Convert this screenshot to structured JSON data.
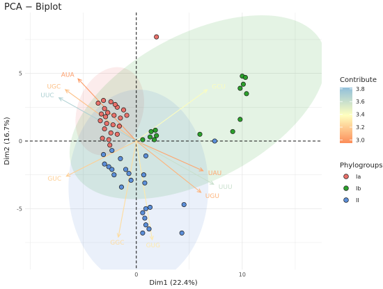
{
  "chart_data": {
    "type": "scatter",
    "subtype": "pca-biplot",
    "title": "PCA − Biplot",
    "xlabel": "Dim1 (22.4%)",
    "ylabel": "Dim2 (16.7%)",
    "xlim": [
      -10.5,
      17.5
    ],
    "ylim": [
      -9.5,
      9.5
    ],
    "xticks": [
      0,
      10
    ],
    "yticks": [
      -5,
      0,
      5
    ],
    "grid": true,
    "reference_lines": {
      "x": 0,
      "y": 0,
      "style": "dashed"
    },
    "groups": [
      {
        "name": "Ia",
        "color": "#e8706a",
        "ellipse": {
          "cx": -2.5,
          "cy": 2.2,
          "rx": 4.3,
          "ry": 2.4,
          "angle": 70
        },
        "points": [
          [
            -3.6,
            2.8
          ],
          [
            -3.0,
            2.4
          ],
          [
            -2.4,
            2.9
          ],
          [
            -1.8,
            2.5
          ],
          [
            -1.2,
            2.3
          ],
          [
            -3.3,
            2.0
          ],
          [
            -2.7,
            2.1
          ],
          [
            -2.1,
            1.9
          ],
          [
            -1.5,
            1.7
          ],
          [
            -0.9,
            1.9
          ],
          [
            -3.4,
            1.5
          ],
          [
            -2.8,
            1.3
          ],
          [
            -2.2,
            1.2
          ],
          [
            -1.6,
            1.1
          ],
          [
            -3.0,
            0.9
          ],
          [
            -2.4,
            0.6
          ],
          [
            -1.8,
            0.5
          ],
          [
            -3.2,
            0.2
          ],
          [
            -2.6,
            0.1
          ],
          [
            -2.5,
            -0.3
          ],
          [
            -3.1,
            3.0
          ],
          [
            -2.0,
            2.7
          ],
          [
            -2.9,
            1.8
          ],
          [
            1.9,
            7.7
          ]
        ]
      },
      {
        "name": "Ib",
        "color": "#2ca02c",
        "ellipse": {
          "cx": 5.8,
          "cy": 2.5,
          "rx": 13.2,
          "ry": 5.4,
          "angle": 28
        },
        "points": [
          [
            10.0,
            4.8
          ],
          [
            10.3,
            4.7
          ],
          [
            10.1,
            4.2
          ],
          [
            9.8,
            3.9
          ],
          [
            10.4,
            3.5
          ],
          [
            9.8,
            1.6
          ],
          [
            9.1,
            0.7
          ],
          [
            6.0,
            0.5
          ],
          [
            1.9,
            0.4
          ],
          [
            1.3,
            0.3
          ],
          [
            0.6,
            0.1
          ],
          [
            1.7,
            0.1
          ],
          [
            1.4,
            0.7
          ],
          [
            1.8,
            0.8
          ]
        ]
      },
      {
        "name": "II",
        "color": "#5b8ed8",
        "ellipse": {
          "cx": 0.2,
          "cy": -3.4,
          "rx": 6.6,
          "ry": 7.2,
          "angle": 0
        },
        "points": [
          [
            -3.1,
            -1.0
          ],
          [
            -2.3,
            -0.7
          ],
          [
            -1.5,
            -1.3
          ],
          [
            -3.0,
            -1.7
          ],
          [
            -2.6,
            -1.9
          ],
          [
            -2.3,
            -2.1
          ],
          [
            -2.1,
            -2.5
          ],
          [
            -1.0,
            -2.1
          ],
          [
            -0.7,
            -2.4
          ],
          [
            -0.5,
            -2.9
          ],
          [
            0.9,
            -1.1
          ],
          [
            0.7,
            -2.5
          ],
          [
            0.8,
            -3.1
          ],
          [
            0.9,
            -5.0
          ],
          [
            0.6,
            -5.3
          ],
          [
            0.8,
            -5.7
          ],
          [
            0.9,
            -6.2
          ],
          [
            1.2,
            -6.5
          ],
          [
            0.6,
            -6.8
          ],
          [
            1.3,
            -4.9
          ],
          [
            4.5,
            -4.7
          ],
          [
            7.4,
            0.0
          ],
          [
            4.3,
            -6.8
          ],
          [
            -1.4,
            -3.4
          ]
        ]
      }
    ],
    "variables": [
      {
        "name": "AUA",
        "x": -5.5,
        "y": 4.6,
        "contrib": 3.0
      },
      {
        "name": "UGC",
        "x": -6.7,
        "y": 3.8,
        "contrib": 3.15
      },
      {
        "name": "UUC",
        "x": -7.3,
        "y": 3.2,
        "contrib": 3.7
      },
      {
        "name": "GCU",
        "x": 6.7,
        "y": 3.8,
        "contrib": 3.4
      },
      {
        "name": "GUC",
        "x": -6.6,
        "y": -2.6,
        "contrib": 3.2
      },
      {
        "name": "UAU",
        "x": 6.3,
        "y": -2.2,
        "contrib": 3.05
      },
      {
        "name": "UUU",
        "x": 7.3,
        "y": -3.2,
        "contrib": 3.6
      },
      {
        "name": "UGU",
        "x": 6.1,
        "y": -3.8,
        "contrib": 3.1
      },
      {
        "name": "GGC",
        "x": -1.7,
        "y": -7.1,
        "contrib": 3.25
      },
      {
        "name": "GUG",
        "x": 1.5,
        "y": -7.3,
        "contrib": 3.3
      }
    ],
    "contrib_scale": {
      "title": "Contribute",
      "min": 2.95,
      "max": 3.82,
      "ticks": [
        "3.8",
        "3.6",
        "3.4",
        "3.2",
        "3.0"
      ],
      "tick_values": [
        3.8,
        3.6,
        3.4,
        3.2,
        3.0
      ],
      "colors": [
        "#fc8d59",
        "#ffffbf",
        "#91bfdb"
      ]
    },
    "legend": {
      "title": "Phylogroups",
      "position": "right",
      "entries": [
        "Ia",
        "Ib",
        "II"
      ]
    }
  }
}
